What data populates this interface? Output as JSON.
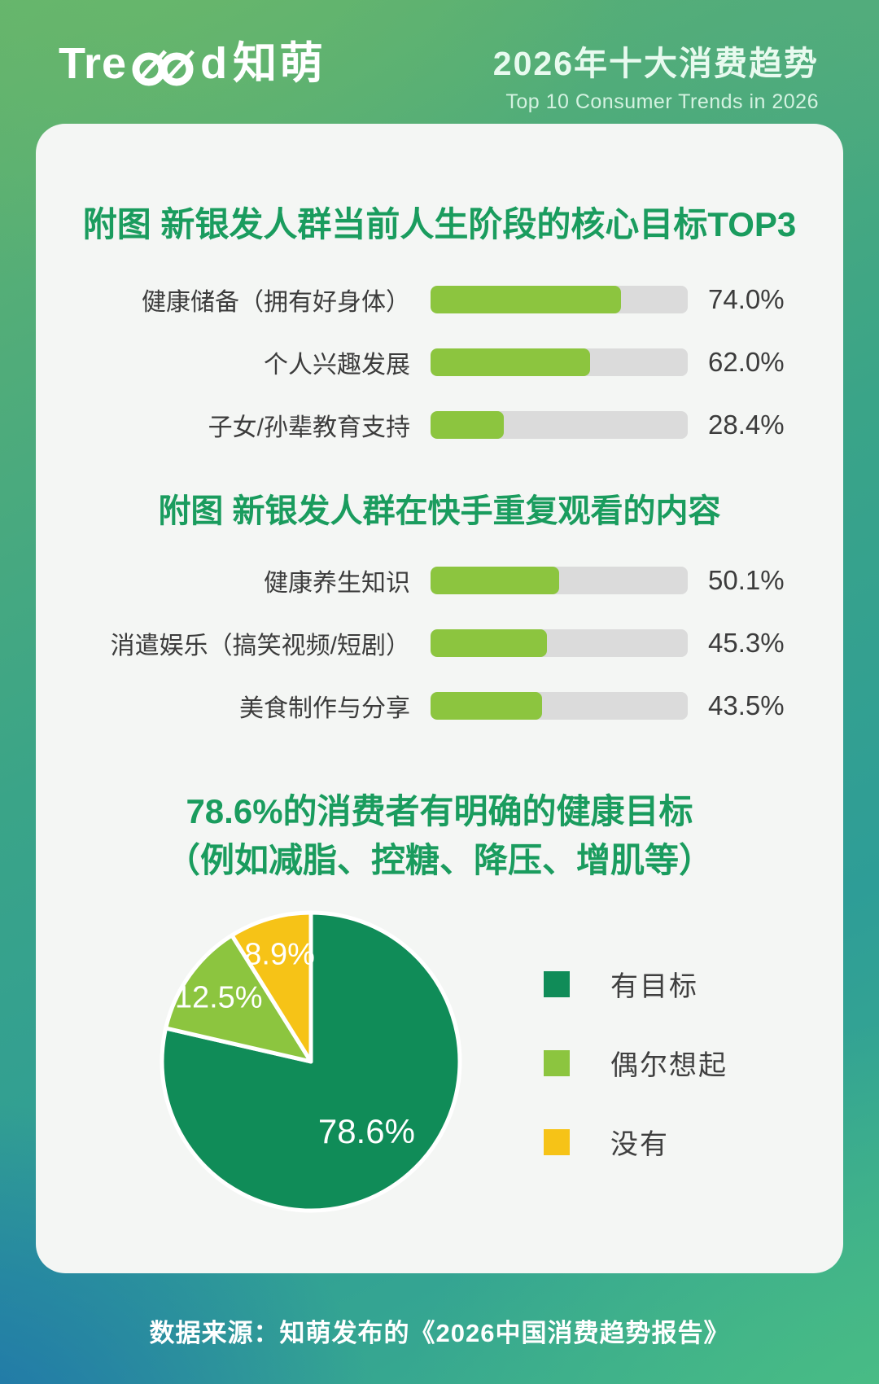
{
  "header": {
    "logo_full": "Tread知萌",
    "logo_prefix": "Tre",
    "logo_suffix": "d",
    "logo_cn": "知萌",
    "title_cn": "2026年十大消费趋势",
    "title_en": "Top 10 Consumer Trends in 2026"
  },
  "theme": {
    "title_green": "#1a9c5e",
    "bar_green": "#8cc53f",
    "track_gray": "#dbdbdb",
    "text_gray": "#3c3c3c",
    "card_bg": "#f4f6f4",
    "pie_dark_green": "#108c58",
    "pie_light_green": "#8cc53f",
    "pie_yellow": "#f6c317"
  },
  "chart_data": [
    {
      "type": "bar",
      "title": "附图 新银发人群当前人生阶段的核心目标TOP3",
      "categories": [
        "健康储备（拥有好身体）",
        "个人兴趣发展",
        "子女/孙辈教育支持"
      ],
      "values": [
        74.0,
        62.0,
        28.4
      ],
      "value_labels": [
        "74.0%",
        "62.0%",
        "28.4%"
      ],
      "xlim": [
        0,
        100
      ],
      "bar_color": "#8cc53f",
      "track_color": "#dbdbdb",
      "orientation": "horizontal"
    },
    {
      "type": "bar",
      "title": "附图 新银发人群在快手重复观看的内容",
      "categories": [
        "健康养生知识",
        "消遣娱乐（搞笑视频/短剧）",
        "美食制作与分享"
      ],
      "values": [
        50.1,
        45.3,
        43.5
      ],
      "value_labels": [
        "50.1%",
        "45.3%",
        "43.5%"
      ],
      "xlim": [
        0,
        100
      ],
      "bar_color": "#8cc53f",
      "track_color": "#dbdbdb",
      "orientation": "horizontal"
    },
    {
      "type": "pie",
      "title_line1": "78.6%的消费者有明确的健康目标",
      "title_line2": "（例如减脂、控糖、降压、增肌等）",
      "slices": [
        {
          "label": "有目标",
          "value": 78.6,
          "display": "78.6%",
          "color": "#108c58"
        },
        {
          "label": "偶尔想起",
          "value": 12.5,
          "display": "12.5%",
          "color": "#8cc53f"
        },
        {
          "label": "没有",
          "value": 8.9,
          "display": "8.9%",
          "color": "#f6c317"
        }
      ],
      "start_angle_deg": 0,
      "direction": "clockwise",
      "legend_position": "right"
    }
  ],
  "footer": {
    "source": "数据来源：知萌发布的《2026中国消费趋势报告》"
  }
}
